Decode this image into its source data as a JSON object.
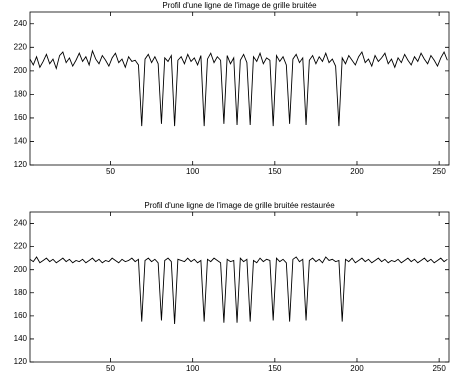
{
  "chart_data": [
    {
      "type": "line",
      "title": "Profil d'une ligne de l'image de grille bruitée",
      "x": [
        1,
        3,
        5,
        7,
        9,
        11,
        13,
        15,
        17,
        19,
        21,
        23,
        25,
        27,
        29,
        31,
        33,
        35,
        37,
        39,
        41,
        43,
        45,
        47,
        49,
        51,
        53,
        55,
        57,
        59,
        61,
        63,
        65,
        67,
        69,
        71,
        73,
        75,
        77,
        79,
        81,
        83,
        85,
        87,
        89,
        91,
        93,
        95,
        97,
        99,
        101,
        103,
        105,
        107,
        109,
        111,
        113,
        115,
        117,
        119,
        121,
        123,
        125,
        127,
        129,
        131,
        133,
        135,
        137,
        139,
        141,
        143,
        145,
        147,
        149,
        151,
        153,
        155,
        157,
        159,
        161,
        163,
        165,
        167,
        169,
        171,
        173,
        175,
        177,
        179,
        181,
        183,
        185,
        187,
        189,
        191,
        193,
        195,
        197,
        199,
        201,
        203,
        205,
        207,
        209,
        211,
        213,
        215,
        217,
        219,
        221,
        223,
        225,
        227,
        229,
        231,
        233,
        235,
        237,
        239,
        241,
        243,
        245,
        247,
        249,
        251,
        253,
        255
      ],
      "values": [
        210,
        205,
        212,
        203,
        208,
        214,
        206,
        210,
        202,
        213,
        216,
        207,
        211,
        204,
        209,
        215,
        208,
        212,
        205,
        217,
        210,
        206,
        213,
        209,
        204,
        211,
        215,
        207,
        210,
        203,
        212,
        208,
        209,
        205,
        153,
        210,
        214,
        207,
        212,
        206,
        155,
        211,
        208,
        213,
        153,
        209,
        212,
        206,
        214,
        208,
        211,
        205,
        213,
        153,
        210,
        215,
        207,
        212,
        209,
        155,
        213,
        206,
        211,
        154,
        209,
        214,
        207,
        154,
        212,
        208,
        215,
        206,
        211,
        209,
        153,
        213,
        208,
        212,
        205,
        155,
        210,
        214,
        207,
        211,
        154,
        209,
        213,
        206,
        212,
        208,
        215,
        207,
        210,
        204,
        153,
        211,
        206,
        213,
        209,
        205,
        212,
        216,
        207,
        210,
        204,
        213,
        208,
        211,
        215,
        206,
        210,
        203,
        211,
        207,
        214,
        209,
        205,
        212,
        208,
        215,
        210,
        206,
        213,
        209,
        204,
        211,
        216,
        209
      ],
      "color": "#000000",
      "xlim": [
        1,
        256
      ],
      "ylim": [
        120,
        250
      ],
      "xticks": [
        50,
        100,
        150,
        200,
        250
      ],
      "yticks": [
        120,
        140,
        160,
        180,
        200,
        220,
        240
      ]
    },
    {
      "type": "line",
      "title": "Profil d'une ligne de l'image de grille bruitée restaurée",
      "x": [
        1,
        3,
        5,
        7,
        9,
        11,
        13,
        15,
        17,
        19,
        21,
        23,
        25,
        27,
        29,
        31,
        33,
        35,
        37,
        39,
        41,
        43,
        45,
        47,
        49,
        51,
        53,
        55,
        57,
        59,
        61,
        63,
        65,
        67,
        69,
        71,
        73,
        75,
        77,
        79,
        81,
        83,
        85,
        87,
        89,
        91,
        93,
        95,
        97,
        99,
        101,
        103,
        105,
        107,
        109,
        111,
        113,
        115,
        117,
        119,
        121,
        123,
        125,
        127,
        129,
        131,
        133,
        135,
        137,
        139,
        141,
        143,
        145,
        147,
        149,
        151,
        153,
        155,
        157,
        159,
        161,
        163,
        165,
        167,
        169,
        171,
        173,
        175,
        177,
        179,
        181,
        183,
        185,
        187,
        189,
        191,
        193,
        195,
        197,
        199,
        201,
        203,
        205,
        207,
        209,
        211,
        213,
        215,
        217,
        219,
        221,
        223,
        225,
        227,
        229,
        231,
        233,
        235,
        237,
        239,
        241,
        243,
        245,
        247,
        249,
        251,
        253,
        255
      ],
      "values": [
        209,
        207,
        211,
        206,
        208,
        210,
        207,
        209,
        206,
        208,
        210,
        207,
        209,
        206,
        208,
        207,
        209,
        206,
        208,
        210,
        207,
        209,
        206,
        208,
        207,
        210,
        208,
        206,
        209,
        207,
        208,
        210,
        207,
        209,
        155,
        208,
        210,
        207,
        209,
        206,
        156,
        208,
        210,
        207,
        153,
        209,
        208,
        207,
        210,
        207,
        209,
        206,
        208,
        155,
        209,
        207,
        210,
        208,
        206,
        154,
        209,
        207,
        208,
        154,
        210,
        207,
        209,
        155,
        208,
        206,
        210,
        207,
        209,
        208,
        156,
        210,
        207,
        209,
        206,
        155,
        209,
        211,
        207,
        209,
        156,
        208,
        210,
        207,
        209,
        206,
        211,
        208,
        209,
        207,
        208,
        155,
        209,
        207,
        210,
        206,
        208,
        210,
        207,
        209,
        206,
        208,
        210,
        207,
        209,
        206,
        208,
        207,
        209,
        206,
        208,
        210,
        207,
        209,
        206,
        208,
        210,
        207,
        209,
        206,
        208,
        210,
        207,
        209
      ],
      "color": "#000000",
      "xlim": [
        1,
        256
      ],
      "ylim": [
        120,
        250
      ],
      "xticks": [
        50,
        100,
        150,
        200,
        250
      ],
      "yticks": [
        120,
        140,
        160,
        180,
        200,
        220,
        240
      ]
    }
  ]
}
